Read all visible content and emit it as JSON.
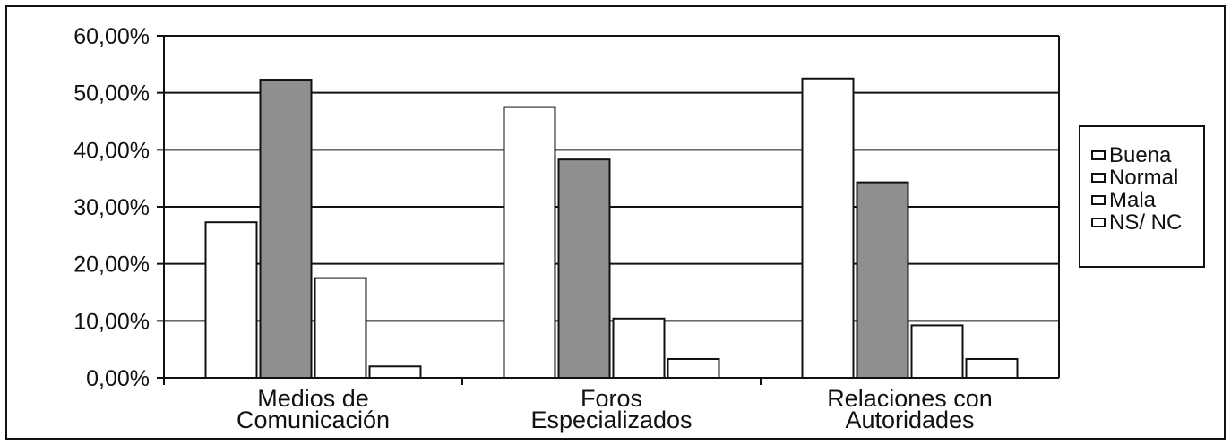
{
  "chart_data": {
    "type": "bar",
    "title": "",
    "xlabel": "",
    "ylabel": "",
    "ylim": [
      0,
      60
    ],
    "yticks": [
      "0,00%",
      "10,00%",
      "20,00%",
      "30,00%",
      "40,00%",
      "50,00%",
      "60,00%"
    ],
    "categories": [
      [
        "Medios de",
        "Comunicación"
      ],
      [
        "Foros",
        "Especializados"
      ],
      [
        "Relaciones con",
        "Autoridades"
      ]
    ],
    "series": [
      {
        "name": "Buena",
        "color": "#ffffff",
        "values": [
          27.3,
          47.5,
          52.5
        ]
      },
      {
        "name": "Normal",
        "color": "#8f8f8f",
        "values": [
          52.3,
          38.3,
          34.3
        ]
      },
      {
        "name": "Mala",
        "color": "#ffffff",
        "values": [
          17.5,
          10.4,
          9.2
        ]
      },
      {
        "name": "NS/ NC",
        "color": "#ffffff",
        "values": [
          2.0,
          3.3,
          3.3
        ]
      }
    ],
    "grid": true,
    "legend": "right"
  }
}
